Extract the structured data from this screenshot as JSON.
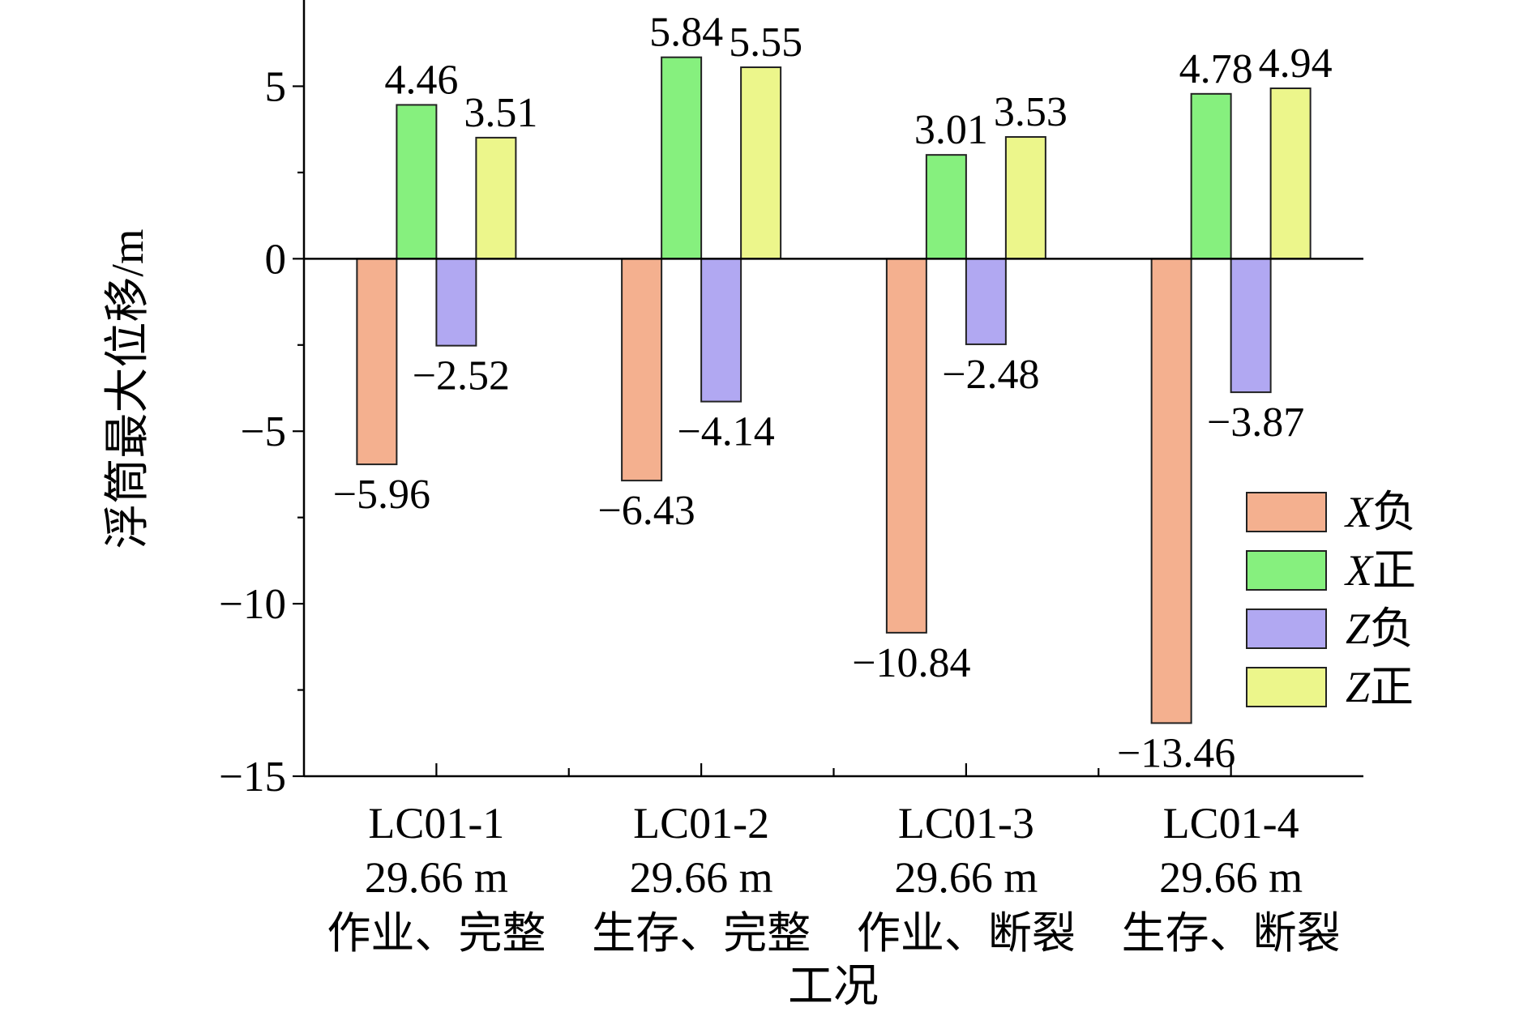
{
  "chart_data": {
    "type": "bar",
    "categories": [
      {
        "id": "LC01-1",
        "depth": "29.66 m",
        "condition": "作业、完整"
      },
      {
        "id": "LC01-2",
        "depth": "29.66 m",
        "condition": "生存、完整"
      },
      {
        "id": "LC01-3",
        "depth": "29.66 m",
        "condition": "作业、断裂"
      },
      {
        "id": "LC01-4",
        "depth": "29.66 m",
        "condition": "生存、断裂"
      }
    ],
    "series": [
      {
        "var": "X",
        "suffix": "负",
        "color": "#F4B08F",
        "values": [
          -5.96,
          -6.43,
          -10.84,
          -13.46
        ],
        "labels": [
          "−5.96",
          "−6.43",
          "−10.84",
          "−13.46"
        ]
      },
      {
        "var": "X",
        "suffix": "正",
        "color": "#86F07E",
        "values": [
          4.46,
          5.84,
          3.01,
          4.78
        ],
        "labels": [
          "4.46",
          "5.84",
          "3.01",
          "4.78"
        ]
      },
      {
        "var": "Z",
        "suffix": "负",
        "color": "#B1A8F2",
        "values": [
          -2.52,
          -4.14,
          -2.48,
          -3.87
        ],
        "labels": [
          "−2.52",
          "−4.14",
          "−2.48",
          "−3.87"
        ]
      },
      {
        "var": "Z",
        "suffix": "正",
        "color": "#ECF68B",
        "values": [
          3.51,
          5.55,
          3.53,
          4.94
        ],
        "labels": [
          "3.51",
          "5.55",
          "3.53",
          "4.94"
        ]
      }
    ],
    "xlabel": "工况",
    "ylabel": "浮筒最大位移/m",
    "ylim": [
      -15,
      7.5
    ],
    "yticks": [
      5,
      0,
      -5,
      -10,
      -15
    ],
    "ytick_labels": [
      "5",
      "0",
      "−5",
      "−10",
      "−15"
    ],
    "yminor_ticks": [
      2.5,
      -2.5,
      -7.5,
      -12.5
    ],
    "grid": false,
    "legend_position": "right"
  }
}
